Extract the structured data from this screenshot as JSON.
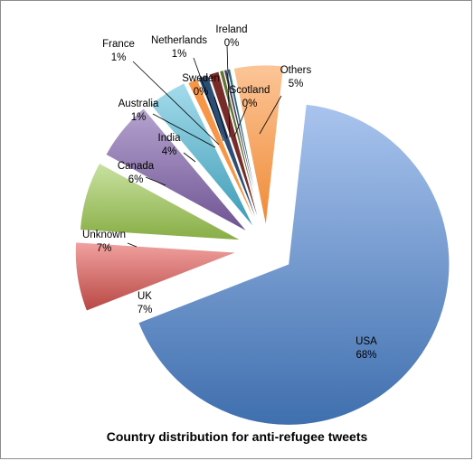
{
  "chart_data": {
    "type": "pie",
    "title": "Country distribution for anti-refugee tweets",
    "exploded": true,
    "slices": [
      {
        "name": "USA",
        "label": "68%",
        "value": 68,
        "color": "#4f81bd"
      },
      {
        "name": "UK",
        "label": "7%",
        "value": 7,
        "color": "#c0504d"
      },
      {
        "name": "Unknown",
        "label": "7%",
        "value": 7,
        "color": "#9bbb59"
      },
      {
        "name": "Canada",
        "label": "6%",
        "value": 6,
        "color": "#8064a2"
      },
      {
        "name": "India",
        "label": "4%",
        "value": 4,
        "color": "#4bacc6"
      },
      {
        "name": "Australia",
        "label": "1%",
        "value": 1,
        "color": "#f79646"
      },
      {
        "name": "France",
        "label": "1%",
        "value": 1,
        "color": "#2c4d75"
      },
      {
        "name": "Netherlands",
        "label": "1%",
        "value": 1,
        "color": "#772c2a"
      },
      {
        "name": "Sweden",
        "label": "0%",
        "value": 0.4,
        "color": "#5f7530"
      },
      {
        "name": "Ireland",
        "label": "0%",
        "value": 0.3,
        "color": "#4d3b62"
      },
      {
        "name": "Scotland",
        "label": "0%",
        "value": 0.3,
        "color": "#276a7c"
      },
      {
        "name": "Others",
        "label": "5%",
        "value": 5,
        "color": "#f79646"
      }
    ]
  }
}
